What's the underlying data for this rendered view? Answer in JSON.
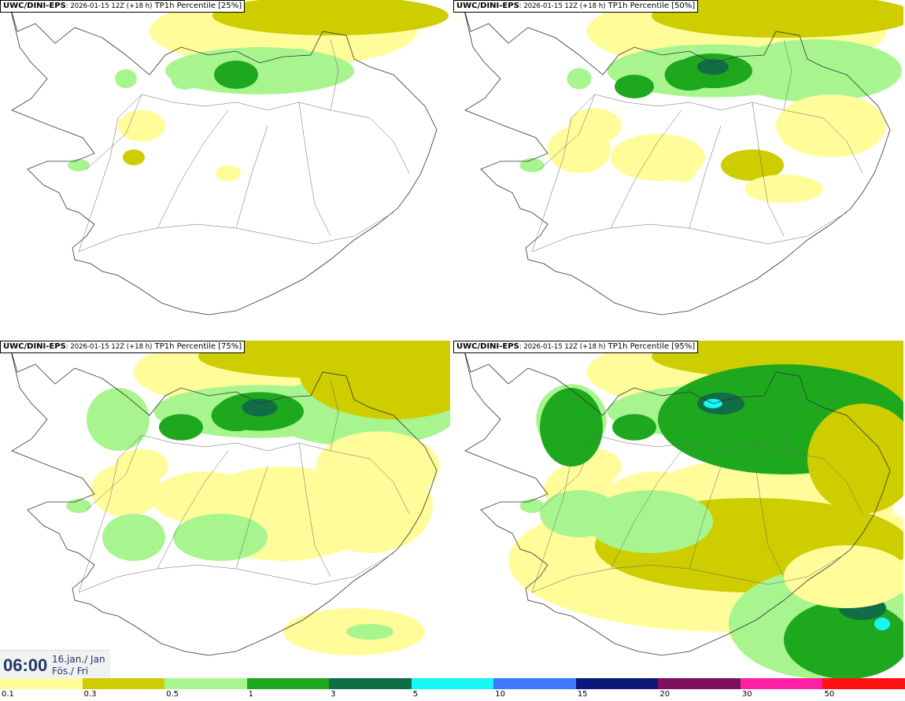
{
  "panels": [
    {
      "model": "UWC/DINI-EPS",
      "run": ": 2026-01-15 12Z (+18 h)",
      "field": " TP1h Percentile [25%]",
      "level": 0
    },
    {
      "model": "UWC/DINI-EPS",
      "run": ": 2026-01-15 12Z (+18 h)",
      "field": " TP1h Percentile [50%]",
      "level": 1
    },
    {
      "model": "UWC/DINI-EPS",
      "run": ": 2026-01-15 12Z (+18 h)",
      "field": " TP1h Percentile [75%]",
      "level": 2
    },
    {
      "model": "UWC/DINI-EPS",
      "run": ": 2026-01-15 12Z (+18 h)",
      "field": " TP1h Percentile [95%]",
      "level": 3
    }
  ],
  "time": {
    "clock": "06:00",
    "date_line1": "16.jan./ Jan",
    "date_line2": "Fös./ Fri"
  },
  "legend": {
    "labels": [
      "0.1",
      "0.3",
      "0.5",
      "1",
      "3",
      "5",
      "10",
      "15",
      "20",
      "30",
      "50"
    ],
    "colors": [
      "#fffc99",
      "#cdcd00",
      "#a8f58f",
      "#1ea81e",
      "#116d45",
      "#17f7f7",
      "#3d78ff",
      "#0c187a",
      "#7d0f5f",
      "#ff1fa5",
      "#ff1111"
    ]
  }
}
